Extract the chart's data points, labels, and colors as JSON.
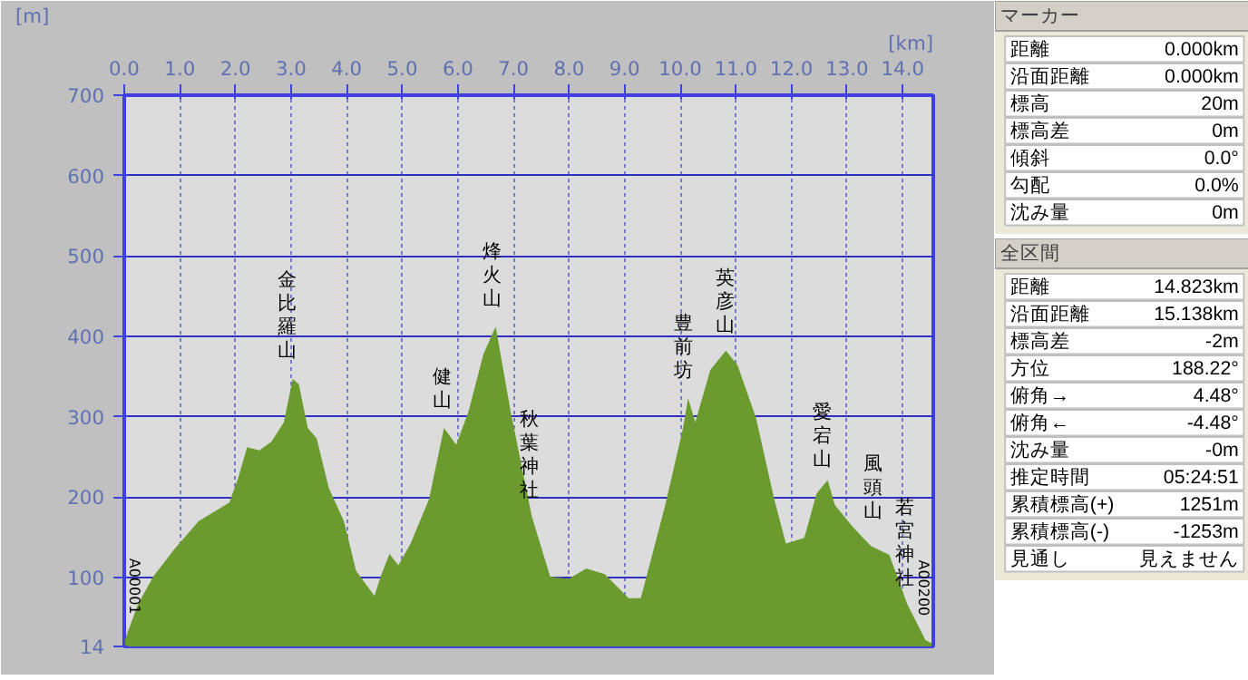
{
  "chart_data": [
    {
      "type": "area",
      "xlabel": "[km]",
      "ylabel": "[m]",
      "color": "#6b9b2e",
      "x": [
        0,
        0.25,
        0.52,
        0.9,
        1.34,
        1.89,
        2.05,
        2.21,
        2.43,
        2.65,
        2.87,
        3.03,
        3.14,
        3.3,
        3.46,
        3.68,
        3.95,
        4.17,
        4.5,
        4.61,
        4.77,
        4.93,
        5.15,
        5.48,
        5.75,
        5.97,
        6.19,
        6.46,
        6.68,
        6.95,
        7.33,
        7.66,
        7.99,
        8.31,
        8.64,
        9.07,
        9.29,
        9.73,
        10.05,
        10.14,
        10.27,
        10.54,
        10.82,
        11.03,
        11.36,
        11.69,
        11.9,
        12.23,
        12.45,
        12.65,
        12.78,
        13.1,
        13.43,
        13.76,
        14.08,
        14.41,
        14.52
      ],
      "values": [
        20,
        67,
        101,
        135,
        170,
        193,
        224,
        262,
        258,
        269,
        293,
        347,
        340,
        286,
        273,
        211,
        170,
        108,
        77,
        101,
        129,
        115,
        142,
        197,
        286,
        265,
        306,
        378,
        412,
        306,
        176,
        101,
        98,
        111,
        104,
        74,
        74,
        190,
        286,
        323,
        293,
        358,
        382,
        364,
        299,
        197,
        142,
        149,
        204,
        221,
        190,
        163,
        139,
        128,
        67,
        22,
        18
      ],
      "xlim": [
        0,
        14.55
      ],
      "xticks": [
        {
          "value": 0,
          "label": "0.0"
        },
        {
          "value": 1,
          "label": "1.0"
        },
        {
          "value": 2,
          "label": "2.0"
        },
        {
          "value": 3,
          "label": "3.0"
        },
        {
          "value": 4,
          "label": "4.0"
        },
        {
          "value": 5,
          "label": "5.0"
        },
        {
          "value": 6,
          "label": "6.0"
        },
        {
          "value": 7,
          "label": "7.0"
        },
        {
          "value": 8,
          "label": "8.0"
        },
        {
          "value": 9,
          "label": "9.0"
        },
        {
          "value": 10,
          "label": "10.0"
        },
        {
          "value": 11,
          "label": "11.0"
        },
        {
          "value": 12,
          "label": "12.0"
        },
        {
          "value": 13,
          "label": "13.0"
        },
        {
          "value": 14,
          "label": "14.0"
        }
      ],
      "ylim": [
        14,
        700
      ],
      "yticks": [
        14,
        100,
        200,
        300,
        400,
        500,
        600,
        700
      ],
      "grid": true,
      "annotations": [
        {
          "text": "金比羅山",
          "x": 2.97,
          "y": 350
        },
        {
          "text": "健山",
          "x": 5.75,
          "y": 288
        },
        {
          "text": "烽火山",
          "x": 6.65,
          "y": 415
        },
        {
          "text": "秋葉神社",
          "x": 7.33,
          "y": 176
        },
        {
          "text": "豊前坊",
          "x": 10.1,
          "y": 325
        },
        {
          "text": "英彦山",
          "x": 10.85,
          "y": 382
        },
        {
          "text": "愛宕山",
          "x": 12.6,
          "y": 215
        },
        {
          "text": "風頭山",
          "x": 13.5,
          "y": 150
        },
        {
          "text": "若宮神社",
          "x": 14.08,
          "y": 67
        },
        {
          "text": "A00001",
          "x": 0,
          "y": 20
        },
        {
          "text": "A00200",
          "x": 14.52,
          "y": 18
        }
      ]
    },
    {
      "type": "other",
      "title": "マーカー",
      "annotations": [
        "距離",
        "0.000km",
        "沿面距離",
        "0.000km",
        "標高",
        "20m",
        "標高差",
        "0m",
        "傾斜",
        "0.0°",
        "勾配",
        "0.0%",
        "沈み量",
        "0m"
      ]
    },
    {
      "type": "other",
      "title": "全区間",
      "annotations": [
        "距離",
        "14.823km",
        "沿面距離",
        "15.138km",
        "標高差",
        "-2m",
        "方位",
        "188.22°",
        "俯角→",
        "4.48°",
        "俯角←",
        "-4.48°",
        "沈み量",
        "-0m",
        "推定時間",
        "05:24:51",
        "累積標高(+)",
        "1251m",
        "累積標高(-)",
        "-1253m",
        "見通し",
        "見えません"
      ]
    }
  ]
}
